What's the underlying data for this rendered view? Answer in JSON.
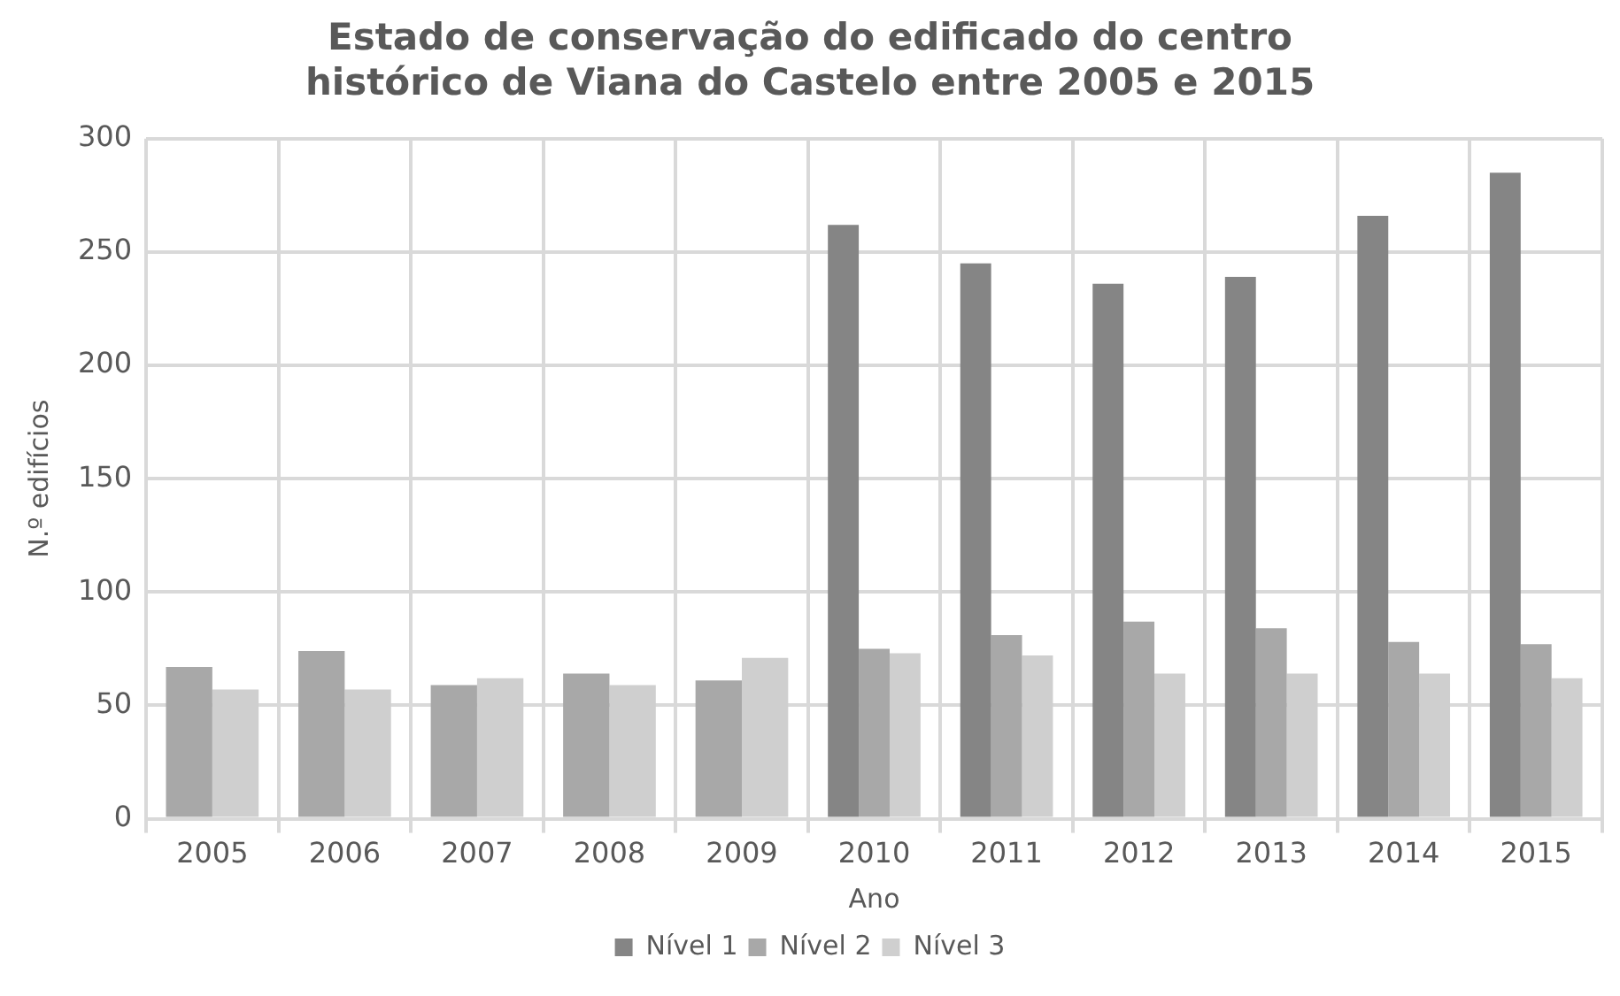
{
  "chart_data": {
    "type": "bar",
    "title": "Estado de conservação do edificado do centro histórico de Viana do Castelo entre 2005 e 2015",
    "xlabel": "Ano",
    "ylabel": "N.º edifícios",
    "categories": [
      "2005",
      "2006",
      "2007",
      "2008",
      "2009",
      "2010",
      "2011",
      "2012",
      "2013",
      "2014",
      "2015"
    ],
    "series": [
      {
        "name": "Nível 1",
        "color": "#858585",
        "values": [
          null,
          null,
          null,
          null,
          null,
          262,
          245,
          236,
          239,
          266,
          285
        ]
      },
      {
        "name": "Nível 2",
        "color": "#a8a8a8",
        "values": [
          67,
          74,
          59,
          64,
          61,
          75,
          81,
          87,
          84,
          78,
          77
        ]
      },
      {
        "name": "Nível 3",
        "color": "#cfcfcf",
        "values": [
          57,
          57,
          62,
          59,
          71,
          73,
          72,
          64,
          64,
          64,
          62
        ]
      }
    ],
    "ylim": [
      0,
      300
    ],
    "yticks": [
      0,
      50,
      100,
      150,
      200,
      250,
      300
    ],
    "grid": true,
    "legend": "bottom"
  }
}
